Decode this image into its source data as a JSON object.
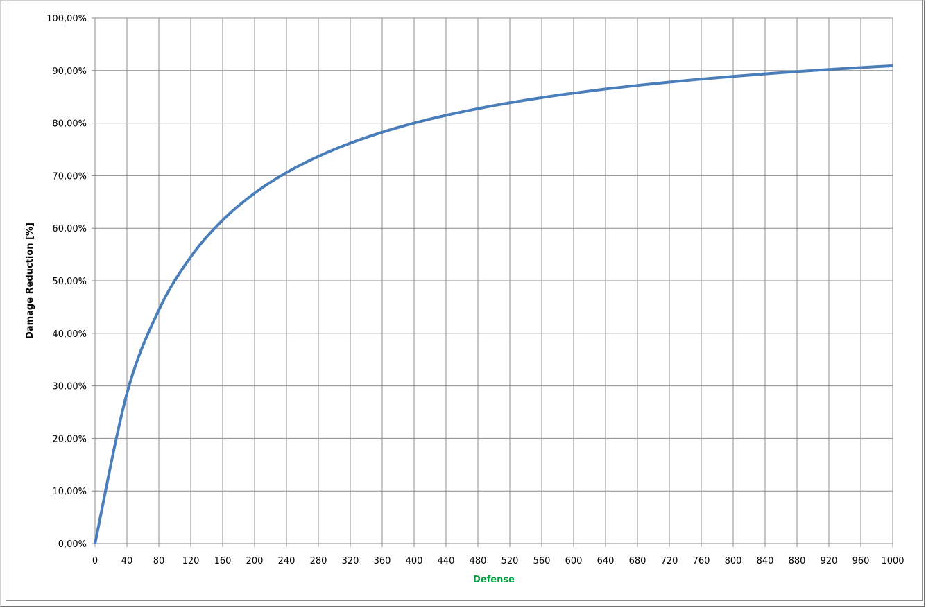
{
  "chart_data": {
    "type": "line",
    "title": "",
    "xlabel": "Defense",
    "ylabel": "Damage Reduction [%]",
    "xlim": [
      0,
      1000
    ],
    "ylim": [
      0,
      100
    ],
    "x_ticks": [
      0,
      40,
      80,
      120,
      160,
      200,
      240,
      280,
      320,
      360,
      400,
      440,
      480,
      520,
      560,
      600,
      640,
      680,
      720,
      760,
      800,
      840,
      880,
      920,
      960,
      1000
    ],
    "y_ticks": [
      "0,00%",
      "10,00%",
      "20,00%",
      "30,00%",
      "40,00%",
      "50,00%",
      "60,00%",
      "70,00%",
      "80,00%",
      "90,00%",
      "100,00%"
    ],
    "grid": true,
    "legend": "none",
    "series": [
      {
        "color": "#4a7ebb",
        "x": [
          0,
          40,
          80,
          120,
          160,
          200,
          240,
          280,
          320,
          360,
          400,
          440,
          480,
          520,
          560,
          600,
          640,
          680,
          720,
          760,
          800,
          840,
          880,
          920,
          960,
          1000
        ],
        "y": [
          0,
          28.57,
          44.44,
          54.55,
          61.54,
          66.67,
          70.59,
          73.68,
          76.19,
          78.26,
          80.0,
          81.48,
          82.76,
          83.87,
          84.85,
          85.71,
          86.49,
          87.18,
          87.8,
          88.37,
          88.89,
          89.36,
          89.8,
          90.2,
          90.57,
          90.91
        ]
      }
    ]
  }
}
